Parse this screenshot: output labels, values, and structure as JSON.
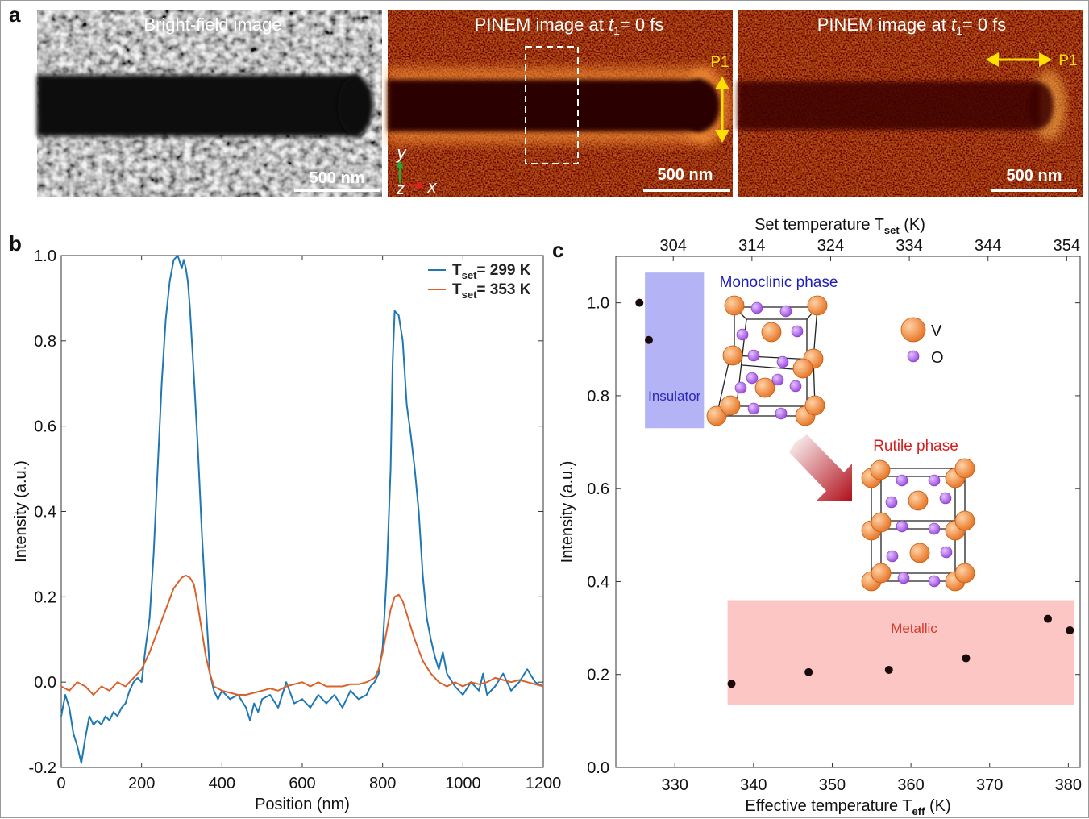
{
  "panel_letters": {
    "a": "a",
    "b": "b",
    "c": "c"
  },
  "panel_a": {
    "images": [
      {
        "title": "Bright-field image",
        "scalebar": "500 nm",
        "style": "gray"
      },
      {
        "title_pre": "PINEM image at ",
        "title_var": "t",
        "title_sub": "1",
        "title_post": "= 0 fs",
        "scalebar": "500 nm",
        "style": "pinem",
        "polarization": "P1"
      },
      {
        "title_pre": "PINEM image at ",
        "title_var": "t",
        "title_sub": "1",
        "title_post": "= 0 fs",
        "scalebar": "500 nm",
        "style": "pinem",
        "polarization": "P1"
      }
    ],
    "axes_labels": {
      "y": "y",
      "z": "z",
      "x": "x"
    },
    "colors": {
      "pinem_dark": "#2a0402",
      "pinem_mid": "#b0190b",
      "pinem_bright": "#ffb84d",
      "arrow": "#ffe000",
      "tip_bright": "#ffcf33"
    }
  },
  "chart_data": [
    {
      "type": "line",
      "panel": "b",
      "xlabel": "Position  (nm)",
      "ylabel": "Intensity (a.u.)",
      "xlim": [
        0,
        1200
      ],
      "ylim": [
        -0.2,
        1.0
      ],
      "xticks": [
        "0",
        "200",
        "400",
        "600",
        "800",
        "1000",
        "1200"
      ],
      "yticks": [
        "-0.2",
        "0.0",
        "0.2",
        "0.4",
        "0.6",
        "0.8",
        "1.0"
      ],
      "legend_position": "top-right",
      "series": [
        {
          "name_pre": "T",
          "name_sub": "set",
          "name_post": "= 299 K",
          "color": "#1f77b4",
          "x": [
            0,
            10,
            20,
            30,
            40,
            50,
            60,
            70,
            80,
            90,
            100,
            110,
            120,
            130,
            140,
            150,
            160,
            170,
            180,
            190,
            200,
            210,
            220,
            230,
            240,
            250,
            260,
            270,
            280,
            290,
            300,
            305,
            310,
            315,
            320,
            330,
            340,
            350,
            360,
            365,
            370,
            380,
            390,
            400,
            420,
            440,
            460,
            470,
            480,
            490,
            500,
            520,
            540,
            560,
            580,
            600,
            620,
            640,
            660,
            680,
            700,
            720,
            740,
            760,
            770,
            780,
            790,
            800,
            810,
            820,
            825,
            830,
            840,
            850,
            860,
            870,
            880,
            890,
            900,
            910,
            920,
            930,
            940,
            950,
            960,
            980,
            1000,
            1020,
            1040,
            1050,
            1060,
            1080,
            1100,
            1120,
            1140,
            1160,
            1180,
            1200
          ],
          "y": [
            -0.08,
            -0.03,
            -0.06,
            -0.12,
            -0.15,
            -0.19,
            -0.13,
            -0.08,
            -0.1,
            -0.09,
            -0.1,
            -0.08,
            -0.09,
            -0.07,
            -0.08,
            -0.06,
            -0.05,
            -0.02,
            0.0,
            0.01,
            0.0,
            0.08,
            0.15,
            0.3,
            0.5,
            0.7,
            0.85,
            0.94,
            0.99,
            1.0,
            0.97,
            0.99,
            0.97,
            0.94,
            0.88,
            0.72,
            0.55,
            0.35,
            0.18,
            0.1,
            0.02,
            -0.02,
            -0.04,
            -0.02,
            -0.04,
            -0.03,
            -0.06,
            -0.09,
            -0.05,
            -0.07,
            -0.04,
            -0.03,
            -0.06,
            0.0,
            -0.05,
            -0.04,
            -0.06,
            -0.03,
            -0.05,
            -0.03,
            -0.06,
            -0.02,
            -0.04,
            -0.03,
            -0.01,
            0.0,
            0.02,
            0.08,
            0.25,
            0.5,
            0.75,
            0.87,
            0.86,
            0.8,
            0.65,
            0.58,
            0.5,
            0.4,
            0.25,
            0.15,
            0.1,
            0.06,
            0.03,
            0.07,
            0.02,
            -0.01,
            -0.03,
            0.0,
            -0.02,
            0.02,
            -0.03,
            -0.01,
            0.02,
            -0.02,
            0.0,
            0.03,
            0.0,
            -0.01
          ]
        },
        {
          "name_pre": "T",
          "name_sub": "set",
          "name_post": "= 353 K",
          "color": "#d9622b",
          "x": [
            0,
            20,
            40,
            60,
            80,
            100,
            120,
            140,
            160,
            180,
            200,
            220,
            240,
            260,
            280,
            300,
            310,
            320,
            330,
            340,
            350,
            360,
            370,
            380,
            400,
            420,
            440,
            460,
            480,
            500,
            520,
            540,
            560,
            580,
            600,
            620,
            640,
            660,
            680,
            700,
            720,
            740,
            760,
            780,
            790,
            800,
            810,
            820,
            830,
            840,
            850,
            860,
            880,
            900,
            920,
            940,
            960,
            980,
            1000,
            1020,
            1040,
            1060,
            1080,
            1100,
            1120,
            1140,
            1160,
            1180,
            1200
          ],
          "y": [
            -0.01,
            -0.02,
            0.0,
            -0.01,
            -0.03,
            -0.01,
            -0.02,
            0.0,
            -0.01,
            0.01,
            0.03,
            0.07,
            0.12,
            0.17,
            0.22,
            0.245,
            0.25,
            0.245,
            0.23,
            0.18,
            0.12,
            0.06,
            0.02,
            -0.01,
            -0.02,
            -0.025,
            -0.03,
            -0.03,
            -0.025,
            -0.02,
            -0.015,
            -0.02,
            -0.01,
            -0.005,
            0.0,
            -0.01,
            0.0,
            -0.01,
            -0.01,
            -0.01,
            -0.005,
            -0.005,
            0.0,
            0.01,
            0.03,
            0.07,
            0.12,
            0.17,
            0.2,
            0.205,
            0.19,
            0.16,
            0.1,
            0.05,
            0.02,
            0.0,
            -0.01,
            0.0,
            -0.01,
            0.0,
            -0.005,
            0.0,
            0.01,
            0.005,
            0.0,
            0.005,
            0.0,
            -0.005,
            -0.01
          ]
        }
      ]
    },
    {
      "type": "scatter",
      "panel": "c",
      "xlabel_pre": "Effective temperature  T",
      "xlabel_sub": "eff",
      "xlabel_post": " (K)",
      "ylabel": "Intensity (a.u.)",
      "top_xlabel_pre": "Set temperature  T",
      "top_xlabel_sub": "set",
      "top_xlabel_post": " (K)",
      "xlim": [
        322.5,
        381.5
      ],
      "ylim": [
        0.0,
        1.1
      ],
      "xticks": [
        "330",
        "340",
        "350",
        "360",
        "370",
        "380"
      ],
      "top_xticks": [
        "304",
        "314",
        "324",
        "334",
        "344",
        "354"
      ],
      "top_xtick_positions": [
        330,
        340,
        350,
        360,
        370,
        380
      ],
      "yticks": [
        "0.0",
        "0.2",
        "0.4",
        "0.6",
        "0.8",
        "1.0"
      ],
      "point_color": "#1a0a0a",
      "points": [
        {
          "x": 325.5,
          "y": 1.0
        },
        {
          "x": 326.7,
          "y": 0.92
        },
        {
          "x": 337.2,
          "y": 0.18
        },
        {
          "x": 347.0,
          "y": 0.205
        },
        {
          "x": 357.2,
          "y": 0.21
        },
        {
          "x": 367.0,
          "y": 0.235
        },
        {
          "x": 377.4,
          "y": 0.32
        },
        {
          "x": 380.2,
          "y": 0.295
        }
      ],
      "regions": [
        {
          "label": "Insulator",
          "x": [
            326.2,
            333.7
          ],
          "y": [
            0.73,
            1.065
          ],
          "color": "#b3b3f5",
          "text_color": "#2a2ab8"
        },
        {
          "label": "Metallic",
          "x": [
            336.7,
            386.7
          ],
          "y": [
            0.135,
            0.36
          ],
          "color": "#fbc6c4",
          "text_color": "#d63a2a"
        }
      ],
      "annotations": {
        "monoclinic": "Monoclinic  phase",
        "monoclinic_color": "#1f1fb5",
        "rutile": "Rutile phase",
        "rutile_color": "#d21f1f",
        "legend_v": "V",
        "legend_o": "O",
        "v_color": "#e8792b",
        "o_color": "#a04fe0"
      }
    }
  ]
}
